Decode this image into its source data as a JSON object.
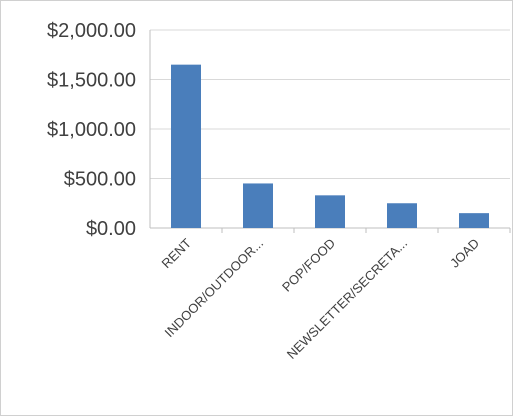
{
  "chart_data": {
    "type": "bar",
    "categories": [
      "RENT",
      "INDOOR/OUTDOOR...",
      "POP/FOOD",
      "NEWSLETTER/SECRETA...",
      "JOAD"
    ],
    "values": [
      1650,
      450,
      330,
      250,
      150
    ],
    "ylim": [
      0,
      2000
    ],
    "yticks": [
      "$0.00",
      "$500.00",
      "$1,000.00",
      "$1,500.00",
      "$2,000.00"
    ],
    "ytick_values": [
      0,
      500,
      1000,
      1500,
      2000
    ],
    "grid": true,
    "legend": "none",
    "colors": {
      "bar": "#4a7ebb",
      "grid": "#d9d9d9",
      "axis": "#bfbfbf"
    }
  }
}
